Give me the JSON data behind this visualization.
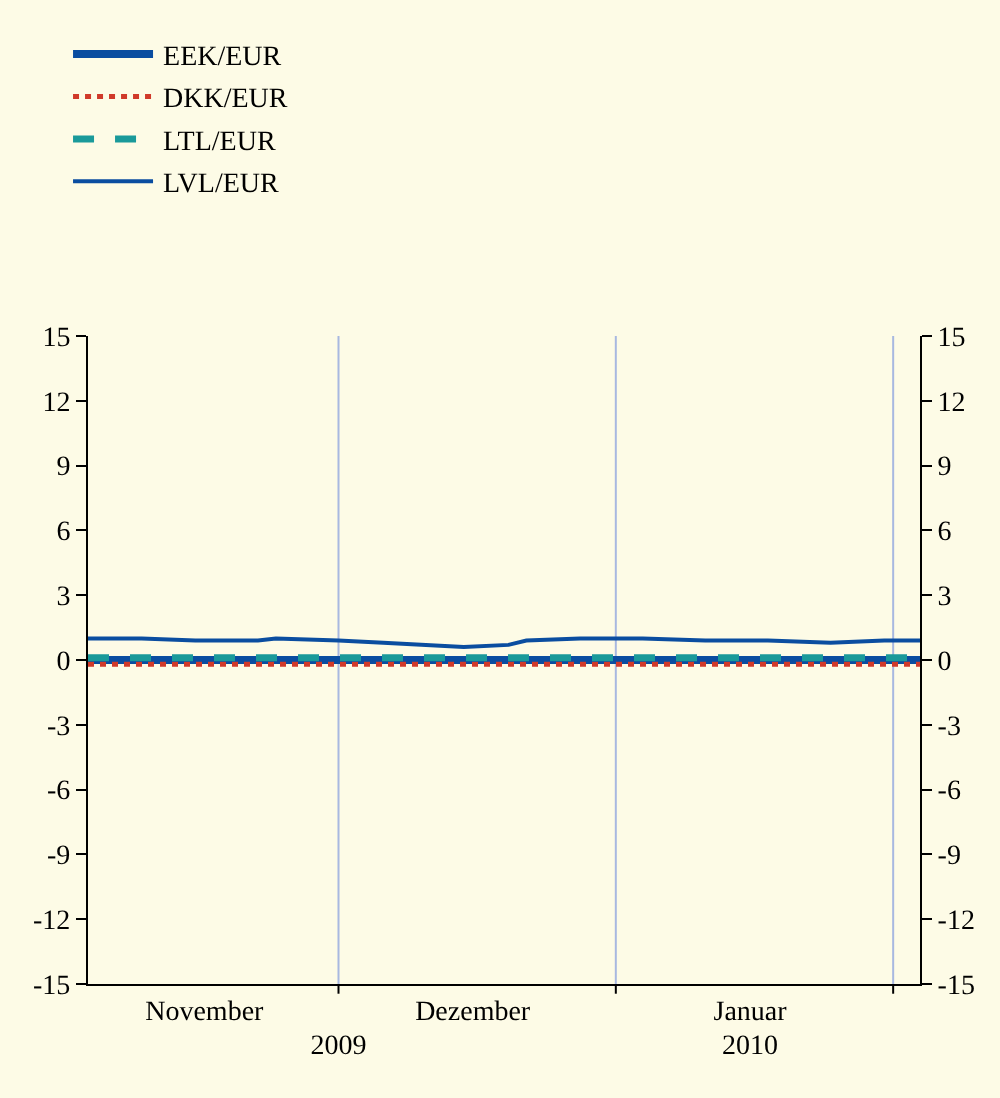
{
  "chart_data": {
    "type": "line",
    "x": [
      "2009-11-03",
      "2009-11-09",
      "2009-11-15",
      "2009-11-22",
      "2009-11-24",
      "2009-12-01",
      "2009-12-06",
      "2009-12-15",
      "2009-12-20",
      "2009-12-22",
      "2009-12-28",
      "2010-01-04",
      "2010-01-11",
      "2010-01-18",
      "2010-01-25",
      "2010-01-31",
      "2010-02-04"
    ],
    "series": [
      {
        "name": "EEK/EUR",
        "color": "#0a4da0",
        "line_style": "solid",
        "values": [
          0,
          0,
          0,
          0,
          0,
          0,
          0,
          0,
          0,
          0,
          0,
          0,
          0,
          0,
          0,
          0,
          0
        ]
      },
      {
        "name": "DKK/EUR",
        "color": "#d03a2a",
        "line_style": "dotted",
        "values": [
          -0.2,
          -0.2,
          -0.2,
          -0.2,
          -0.2,
          -0.2,
          -0.2,
          -0.2,
          -0.2,
          -0.2,
          -0.2,
          -0.2,
          -0.2,
          -0.2,
          -0.2,
          -0.2,
          -0.2
        ]
      },
      {
        "name": "LTL/EUR",
        "color": "#1a9a9a",
        "line_style": "dashed",
        "values": [
          0.1,
          0.1,
          0.1,
          0.1,
          0.1,
          0.1,
          0.1,
          0.1,
          0.1,
          0.1,
          0.1,
          0.1,
          0.1,
          0.1,
          0.1,
          0.1,
          0.1
        ]
      },
      {
        "name": "LVL/EUR",
        "color": "#0a4da0",
        "line_style": "solid",
        "values": [
          1.0,
          1.0,
          0.9,
          0.9,
          1.0,
          0.9,
          0.8,
          0.6,
          0.7,
          0.9,
          1.0,
          1.0,
          0.9,
          0.9,
          0.8,
          0.9,
          0.9
        ]
      }
    ],
    "xlim": [
      "2009-11-03",
      "2010-02-04"
    ],
    "xticks": [
      {
        "value": "2009-12-01",
        "label": null
      },
      {
        "value": "2010-01-01",
        "label": null
      },
      {
        "value": "2010-02-01",
        "label": null
      },
      {
        "value": "2009-11-16",
        "label": "November"
      },
      {
        "value": "2009-12-16",
        "label": "Dezember"
      },
      {
        "value": "2010-01-16",
        "label": "Januar"
      }
    ],
    "x2lim": [
      "2009-11-03",
      "2010-02-04"
    ],
    "x2ticks": [
      {
        "value": "2009-12-01",
        "label": "2009"
      },
      {
        "value": "2010-01-16",
        "label": "2010"
      }
    ],
    "ylim": [
      -15,
      15
    ],
    "yticks": [
      -15,
      -12,
      -9,
      -6,
      -3,
      0,
      3,
      6,
      9,
      12,
      15
    ],
    "y2lim": [
      -15,
      15
    ],
    "y2ticks": [
      -15,
      -12,
      -9,
      -6,
      -3,
      0,
      3,
      6,
      9,
      12,
      15
    ],
    "grid": "x",
    "legend": "top left"
  }
}
